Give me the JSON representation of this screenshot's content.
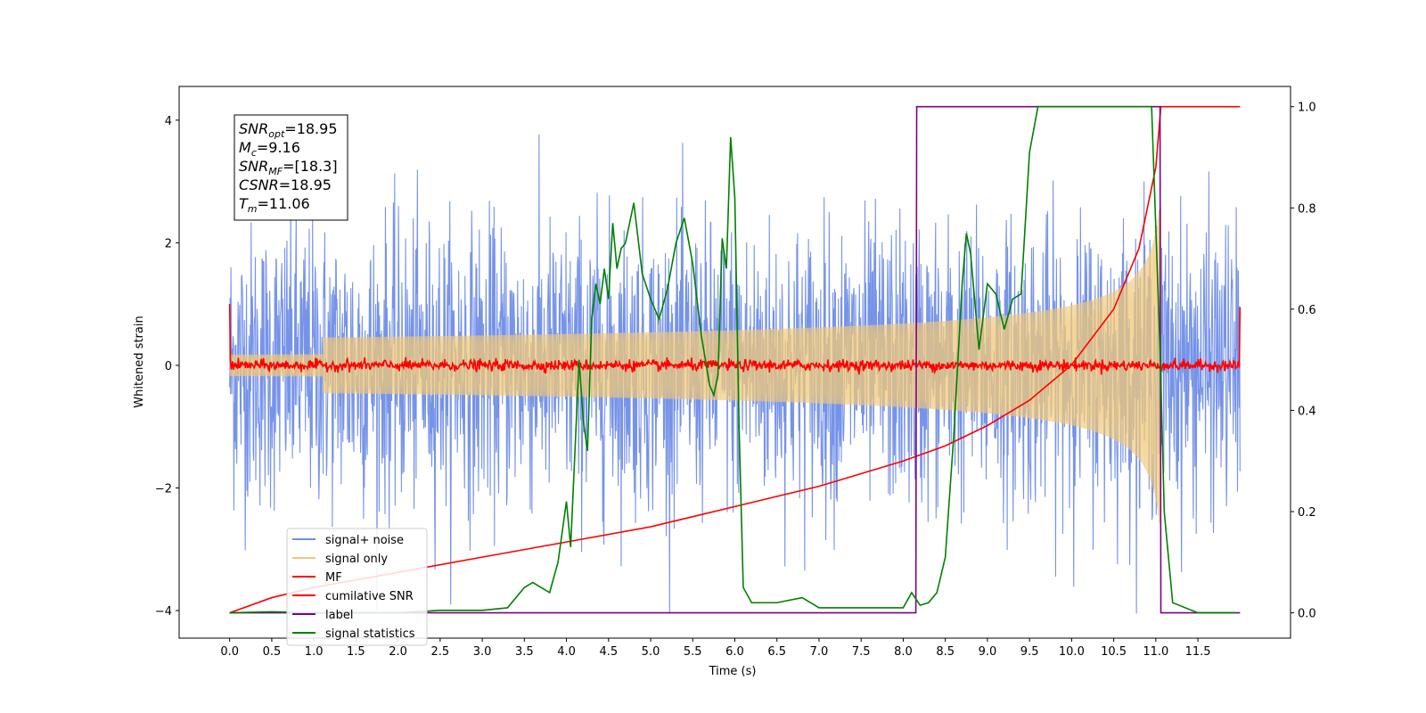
{
  "chart_data": {
    "type": "line",
    "xlabel": "Time (s)",
    "ylabel": "Whitened strain",
    "xlim": [
      -0.6,
      12.6
    ],
    "ylim_left": [
      -4.45,
      4.55
    ],
    "ylim_right": [
      -0.05,
      1.04
    ],
    "xticks": [
      "0.0",
      "0.5",
      "1.0",
      "1.5",
      "2.0",
      "2.5",
      "3.0",
      "3.5",
      "4.0",
      "4.5",
      "5.0",
      "5.5",
      "6.0",
      "6.5",
      "7.0",
      "7.5",
      "8.0",
      "8.5",
      "9.0",
      "9.5",
      "10.0",
      "10.5",
      "11.0",
      "11.5"
    ],
    "yticks_left": [
      "4",
      "2",
      "0",
      "−2",
      "−4"
    ],
    "yticks_left_values": [
      4,
      2,
      0,
      -2,
      -4
    ],
    "yticks_right": [
      "1.0",
      "0.8",
      "0.6",
      "0.4",
      "0.2",
      "0.0"
    ],
    "yticks_right_values": [
      1.0,
      0.8,
      0.6,
      0.4,
      0.2,
      0.0
    ],
    "grid": false,
    "legend_position": "lower-left",
    "info_box": [
      {
        "base": "SNR",
        "sub": "opt",
        "value": "=18.95"
      },
      {
        "base": "M",
        "sub": "c",
        "value": "=9.16"
      },
      {
        "base": "SNR",
        "sub": "MF",
        "value": "=[18.3]"
      },
      {
        "base": "CSNR",
        "sub": "",
        "value": "=18.95"
      },
      {
        "base": "T",
        "sub": "m",
        "value": "=11.06"
      }
    ],
    "series": [
      {
        "name": "signal+ noise",
        "color": "#6f8de8",
        "axis": "left",
        "kind": "noise",
        "x_range": [
          0,
          12.0
        ],
        "amplitude_range": [
          -4.05,
          3.85
        ]
      },
      {
        "name": "signal only",
        "color": "#f0c878",
        "axis": "left",
        "kind": "chirp",
        "x_range": [
          0,
          11.06
        ],
        "peak_time": 11.06,
        "peak_amplitude": 2.9
      },
      {
        "name": "MF",
        "color": "#ff0000",
        "axis": "left",
        "kind": "flat-noise",
        "x_range": [
          0,
          12.0
        ],
        "start_value": 1.0,
        "end_value": 0.95,
        "level": 0.0
      },
      {
        "name": "cumilative SNR",
        "color": "#ff0000",
        "axis": "right",
        "x": [
          0,
          0.5,
          1.0,
          2.0,
          3.0,
          4.0,
          5.0,
          6.0,
          7.0,
          8.0,
          8.5,
          9.0,
          9.5,
          10.0,
          10.5,
          10.8,
          11.0,
          11.06,
          12.0
        ],
        "y": [
          0.0,
          0.03,
          0.05,
          0.08,
          0.11,
          0.14,
          0.17,
          0.21,
          0.25,
          0.3,
          0.33,
          0.37,
          0.42,
          0.49,
          0.6,
          0.72,
          0.88,
          1.0,
          1.0
        ]
      },
      {
        "name": "label",
        "color": "#800080",
        "axis": "right",
        "x": [
          0,
          8.15,
          8.16,
          11.05,
          11.06,
          12.0
        ],
        "y": [
          0,
          0,
          1,
          1,
          0,
          0
        ]
      },
      {
        "name": "signal statistics",
        "color": "#008000",
        "axis": "right",
        "x": [
          0,
          0.5,
          1.0,
          1.5,
          2.0,
          2.5,
          3.0,
          3.3,
          3.5,
          3.6,
          3.8,
          3.9,
          4.0,
          4.05,
          4.15,
          4.2,
          4.25,
          4.3,
          4.35,
          4.4,
          4.45,
          4.5,
          4.55,
          4.6,
          4.65,
          4.7,
          4.8,
          4.85,
          4.9,
          5.0,
          5.1,
          5.2,
          5.3,
          5.4,
          5.5,
          5.6,
          5.7,
          5.75,
          5.8,
          5.85,
          5.9,
          5.95,
          6.0,
          6.05,
          6.1,
          6.2,
          6.5,
          6.8,
          7.0,
          7.5,
          8.0,
          8.1,
          8.2,
          8.3,
          8.4,
          8.5,
          8.6,
          8.7,
          8.75,
          8.8,
          8.9,
          9.0,
          9.1,
          9.2,
          9.3,
          9.4,
          9.5,
          9.6,
          9.7,
          10.0,
          10.5,
          10.8,
          10.95,
          11.05,
          11.1,
          11.2,
          11.5,
          11.95
        ],
        "y": [
          0.0,
          0.002,
          0.0,
          0.0,
          0.0,
          0.005,
          0.005,
          0.01,
          0.05,
          0.06,
          0.04,
          0.1,
          0.22,
          0.13,
          0.5,
          0.38,
          0.32,
          0.58,
          0.65,
          0.61,
          0.68,
          0.62,
          0.77,
          0.68,
          0.72,
          0.73,
          0.81,
          0.74,
          0.67,
          0.62,
          0.58,
          0.64,
          0.73,
          0.78,
          0.69,
          0.55,
          0.45,
          0.43,
          0.47,
          0.74,
          0.68,
          0.94,
          0.82,
          0.37,
          0.05,
          0.02,
          0.02,
          0.03,
          0.01,
          0.01,
          0.01,
          0.04,
          0.015,
          0.02,
          0.04,
          0.11,
          0.35,
          0.65,
          0.75,
          0.71,
          0.52,
          0.65,
          0.63,
          0.56,
          0.62,
          0.63,
          0.91,
          1.0,
          1.0,
          1.0,
          1.0,
          1.0,
          1.0,
          0.52,
          0.2,
          0.02,
          0.0,
          0.0
        ]
      }
    ]
  }
}
